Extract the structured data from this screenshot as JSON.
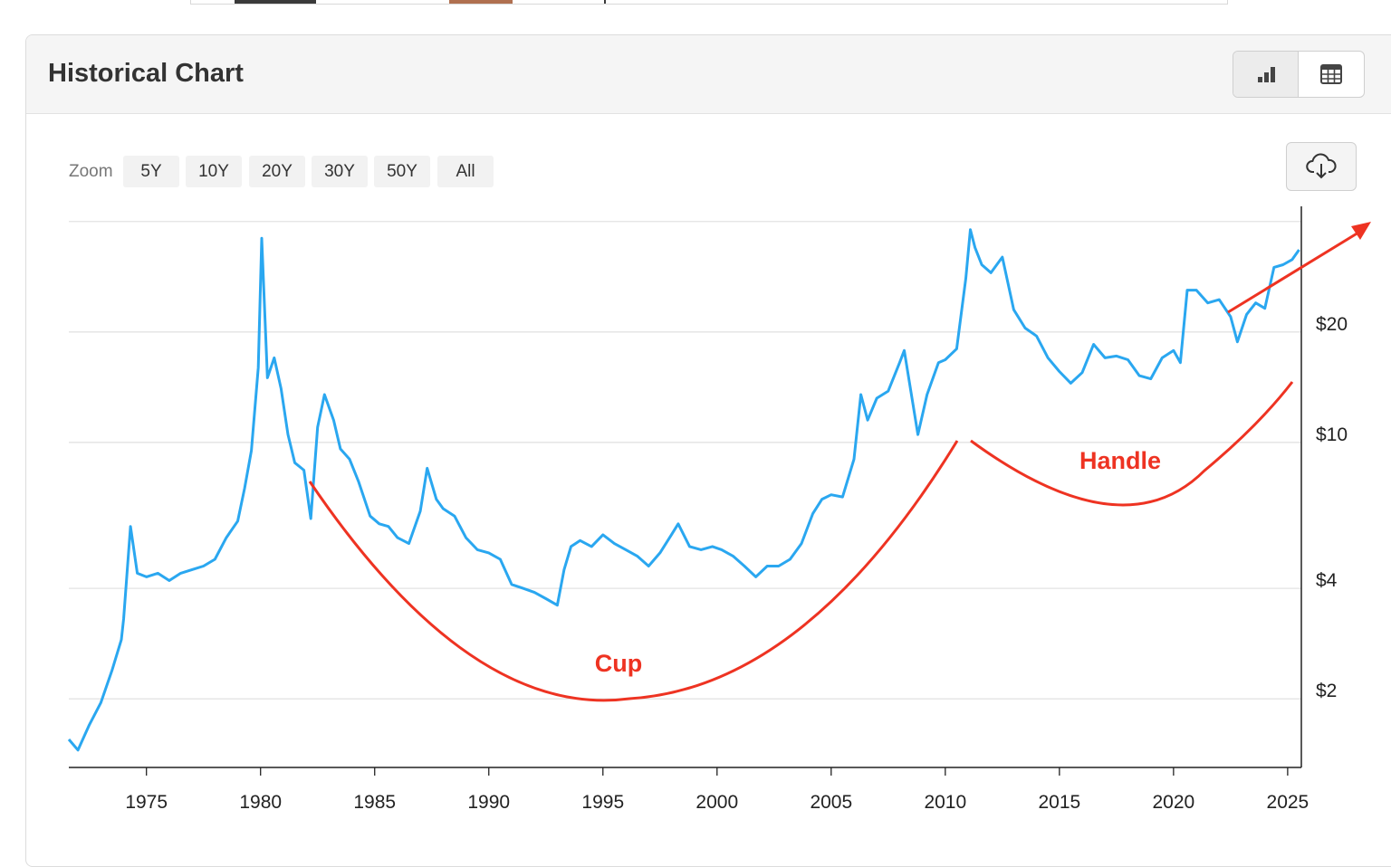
{
  "header": {
    "title": "Historical Chart",
    "view_buttons": [
      {
        "name": "chart-view-button",
        "icon": "bar-chart-icon",
        "active": true
      },
      {
        "name": "table-view-button",
        "icon": "table-icon",
        "active": false
      }
    ]
  },
  "zoom": {
    "label": "Zoom",
    "options": [
      "5Y",
      "10Y",
      "20Y",
      "30Y",
      "50Y",
      "All"
    ]
  },
  "download": {
    "icon": "cloud-download-icon"
  },
  "colors": {
    "series": "#2aa7f0",
    "annotation": "#ee3322",
    "grid": "#e3e3e3",
    "axis": "#222222"
  },
  "chart_data": {
    "type": "line",
    "title": "",
    "xlabel": "",
    "ylabel": "",
    "y_scale": "log",
    "xlim": [
      1971.6,
      2025.6
    ],
    "ylim": [
      1.3,
      44
    ],
    "x_ticks": [
      1975,
      1980,
      1985,
      1990,
      1995,
      2000,
      2005,
      2010,
      2015,
      2020,
      2025
    ],
    "y_gridlines": [
      2,
      4,
      10,
      20,
      40
    ],
    "y_tick_labels": [
      {
        "value": 20,
        "label": "$20"
      },
      {
        "value": 10,
        "label": "$10"
      },
      {
        "value": 4,
        "label": "$4"
      },
      {
        "value": 2,
        "label": "$2"
      }
    ],
    "grid": true,
    "series": [
      {
        "name": "",
        "x": [
          1971.6,
          1972.0,
          1972.5,
          1973.0,
          1973.5,
          1973.9,
          1974.0,
          1974.3,
          1974.6,
          1975.0,
          1975.5,
          1976.0,
          1976.5,
          1977.0,
          1977.5,
          1978.0,
          1978.5,
          1979.0,
          1979.3,
          1979.6,
          1979.9,
          1980.05,
          1980.3,
          1980.6,
          1980.9,
          1981.2,
          1981.5,
          1981.9,
          1982.2,
          1982.5,
          1982.8,
          1983.2,
          1983.5,
          1983.9,
          1984.3,
          1984.8,
          1985.2,
          1985.6,
          1986.0,
          1986.5,
          1987.0,
          1987.3,
          1987.7,
          1988.0,
          1988.5,
          1989.0,
          1989.5,
          1990.0,
          1990.5,
          1991.0,
          1991.5,
          1992.0,
          1992.5,
          1993.0,
          1993.3,
          1993.6,
          1994.0,
          1994.5,
          1995.0,
          1995.5,
          1996.0,
          1996.5,
          1997.0,
          1997.5,
          1998.0,
          1998.3,
          1998.8,
          1999.3,
          1999.8,
          2000.2,
          2000.7,
          2001.2,
          2001.7,
          2002.2,
          2002.7,
          2003.2,
          2003.7,
          2004.2,
          2004.6,
          2005.0,
          2005.5,
          2006.0,
          2006.3,
          2006.6,
          2007.0,
          2007.5,
          2008.0,
          2008.2,
          2008.8,
          2009.2,
          2009.7,
          2010.0,
          2010.5,
          2010.9,
          2011.1,
          2011.3,
          2011.6,
          2012.0,
          2012.5,
          2013.0,
          2013.5,
          2014.0,
          2014.5,
          2015.0,
          2015.5,
          2016.0,
          2016.5,
          2017.0,
          2017.5,
          2018.0,
          2018.5,
          2019.0,
          2019.5,
          2020.0,
          2020.3,
          2020.6,
          2021.0,
          2021.5,
          2022.0,
          2022.5,
          2022.8,
          2023.2,
          2023.6,
          2024.0,
          2024.4,
          2024.8,
          2025.2,
          2025.5
        ],
        "values": [
          1.55,
          1.45,
          1.7,
          1.95,
          2.4,
          2.9,
          3.3,
          5.9,
          4.4,
          4.3,
          4.4,
          4.2,
          4.4,
          4.5,
          4.6,
          4.8,
          5.5,
          6.1,
          7.5,
          9.5,
          16.0,
          36.0,
          15.0,
          17.0,
          14.0,
          10.5,
          8.8,
          8.4,
          6.2,
          11.0,
          13.5,
          11.5,
          9.6,
          9.0,
          7.8,
          6.3,
          6.0,
          5.9,
          5.5,
          5.3,
          6.5,
          8.5,
          7.0,
          6.6,
          6.3,
          5.5,
          5.1,
          5.0,
          4.8,
          4.1,
          4.0,
          3.9,
          3.75,
          3.6,
          4.5,
          5.2,
          5.4,
          5.2,
          5.6,
          5.3,
          5.1,
          4.9,
          4.6,
          5.0,
          5.6,
          6.0,
          5.2,
          5.1,
          5.2,
          5.1,
          4.9,
          4.6,
          4.3,
          4.6,
          4.6,
          4.8,
          5.3,
          6.4,
          7.0,
          7.2,
          7.1,
          9.0,
          13.5,
          11.5,
          13.2,
          13.8,
          16.5,
          17.8,
          10.5,
          13.5,
          16.5,
          16.8,
          18.0,
          28.0,
          38.0,
          34.0,
          30.5,
          29.0,
          32.0,
          23.0,
          20.5,
          19.5,
          17.0,
          15.6,
          14.5,
          15.5,
          18.5,
          17.0,
          17.2,
          16.8,
          15.2,
          14.9,
          17.0,
          17.8,
          16.5,
          26.0,
          26.0,
          24.0,
          24.5,
          22.0,
          18.8,
          22.3,
          24.0,
          23.2,
          30.0,
          30.5,
          31.5,
          33.5
        ]
      }
    ],
    "annotations": [
      {
        "label": "Cup",
        "type": "arc"
      },
      {
        "label": "Handle",
        "type": "arc"
      },
      {
        "label": "",
        "type": "arrow"
      }
    ]
  }
}
